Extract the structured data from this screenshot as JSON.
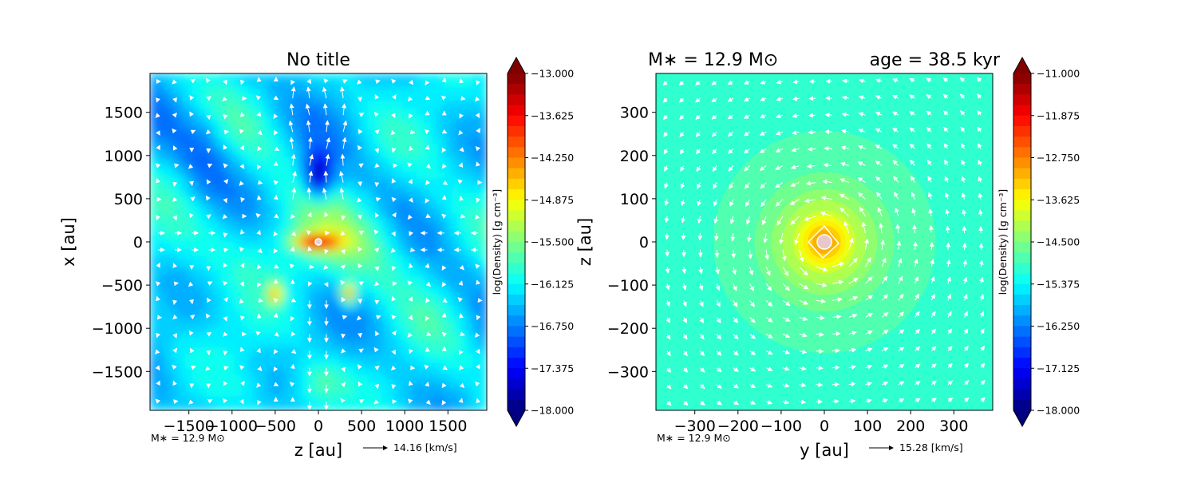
{
  "chart_data": [
    {
      "type": "heatmap",
      "title": "No title",
      "xlabel": "z [au]",
      "ylabel": "x [au]",
      "xlim": [
        -1950,
        1950
      ],
      "ylim": [
        -1950,
        1950
      ],
      "xticks": [
        -1500,
        -1000,
        -500,
        0,
        500,
        1000,
        1500
      ],
      "yticks": [
        -1500,
        -1000,
        -500,
        0,
        500,
        1000,
        1500
      ],
      "xtick_labels": [
        "−1500",
        "−1000",
        "−500",
        "0",
        "500",
        "1000",
        "1500"
      ],
      "ytick_labels": [
        "−1500",
        "−1000",
        "−500",
        "0",
        "500",
        "1000",
        "1500"
      ],
      "colorbar": {
        "label": "log(Density) [g cm⁻³]",
        "min": -18.0,
        "max": -13.0,
        "ticks": [
          -13.0,
          -13.625,
          -14.25,
          -14.875,
          -15.5,
          -16.125,
          -16.75,
          -17.375,
          -18.0
        ],
        "tick_labels": [
          "−13.000",
          "−13.625",
          "−14.250",
          "−14.875",
          "−15.500",
          "−16.125",
          "−16.750",
          "−17.375",
          "−18.000"
        ]
      },
      "mass_note": "M∗ = 12.9 M⊙",
      "arrow_key": "14.16 [km/s]",
      "features": [
        {
          "z": 0,
          "x": 0,
          "logrho": -13.2,
          "sz": 250,
          "sx": 90
        },
        {
          "z": 0,
          "x": 800,
          "logrho": -17.8,
          "sz": 160,
          "sx": 260
        },
        {
          "z": -500,
          "x": -600,
          "logrho": -14.3,
          "sz": 80,
          "sx": 120
        },
        {
          "z": 350,
          "x": -600,
          "logrho": -14.3,
          "sz": 80,
          "sx": 120
        }
      ]
    },
    {
      "type": "heatmap",
      "title": "M∗ = 12.9 M⊙",
      "title_right": "age = 38.5 kyr",
      "xlabel": "y [au]",
      "ylabel": "z [au]",
      "xlim": [
        -390,
        390
      ],
      "ylim": [
        -390,
        390
      ],
      "xticks": [
        -300,
        -200,
        -100,
        0,
        100,
        200,
        300
      ],
      "yticks": [
        -300,
        -200,
        -100,
        0,
        100,
        200,
        300
      ],
      "xtick_labels": [
        "−300",
        "−200",
        "−100",
        "0",
        "100",
        "200",
        "300"
      ],
      "ytick_labels": [
        "−300",
        "−200",
        "−100",
        "0",
        "100",
        "200",
        "300"
      ],
      "colorbar": {
        "label": "log(Density) [g cm⁻³]",
        "min": -18.0,
        "max": -11.0,
        "ticks": [
          -11.0,
          -11.875,
          -12.75,
          -13.625,
          -14.5,
          -15.375,
          -16.25,
          -17.125,
          -18.0
        ],
        "tick_labels": [
          "−11.000",
          "−11.875",
          "−12.750",
          "−13.625",
          "−14.500",
          "−15.375",
          "−16.250",
          "−17.125",
          "−18.000"
        ]
      },
      "mass_note": "M∗ = 12.9 M⊙",
      "arrow_key": "15.28 [km/s]",
      "profile": {
        "center_logrho": -12.0,
        "edge_logrho": -15.0,
        "edge_radius": 390
      }
    }
  ]
}
